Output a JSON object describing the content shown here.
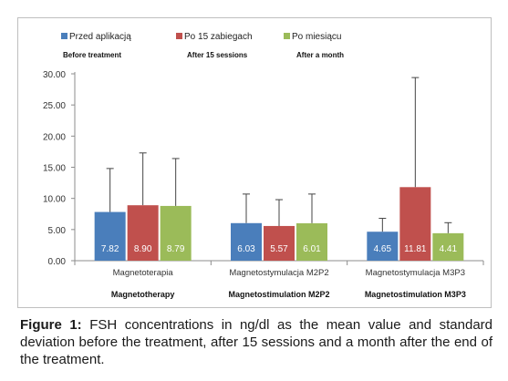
{
  "chart_data": {
    "type": "bar",
    "categories": [
      "Magnetoterapia",
      "Magnetostymulacja M2P2",
      "Magnetostymulacja M3P3"
    ],
    "category_subtitles": [
      "Magnetotherapy",
      "Magnetostimulation M2P2",
      "Magnetostimulation M3P3"
    ],
    "series": [
      {
        "name": "Przed aplikacją",
        "subtitle": "Before treatment",
        "color": "#4a7ebb",
        "values": [
          7.82,
          6.03,
          4.65
        ],
        "value_labels": [
          "7.82",
          "6.03",
          "4.65"
        ],
        "error_upper": [
          14.8,
          10.7,
          6.8
        ]
      },
      {
        "name": "Po 15 zabiegach",
        "subtitle": "After 15 sessions",
        "color": "#c0504d",
        "values": [
          8.9,
          5.57,
          11.81
        ],
        "value_labels": [
          "8.90",
          "5.57",
          "11.81"
        ],
        "error_upper": [
          17.3,
          9.8,
          29.4
        ]
      },
      {
        "name": "Po miesiącu",
        "subtitle": "After a month",
        "color": "#9bbb59",
        "values": [
          8.79,
          6.01,
          4.41
        ],
        "value_labels": [
          "8.79",
          "6.01",
          "4.41"
        ],
        "error_upper": [
          16.4,
          10.7,
          6.1
        ]
      }
    ],
    "ylim": [
      0,
      30
    ],
    "yticks": [
      0,
      5,
      10,
      15,
      20,
      25,
      30
    ],
    "ytick_labels": [
      "0.00",
      "5.00",
      "10.00",
      "15.00",
      "20.00",
      "25.00",
      "30.00"
    ],
    "legend_position": "top",
    "grid": false
  },
  "caption": {
    "label": "Figure 1:",
    "text": " FSH concentrations in ng/dl as the mean value and standard deviation before the treatment, after 15 sessions and a month after the end of the treatment."
  }
}
